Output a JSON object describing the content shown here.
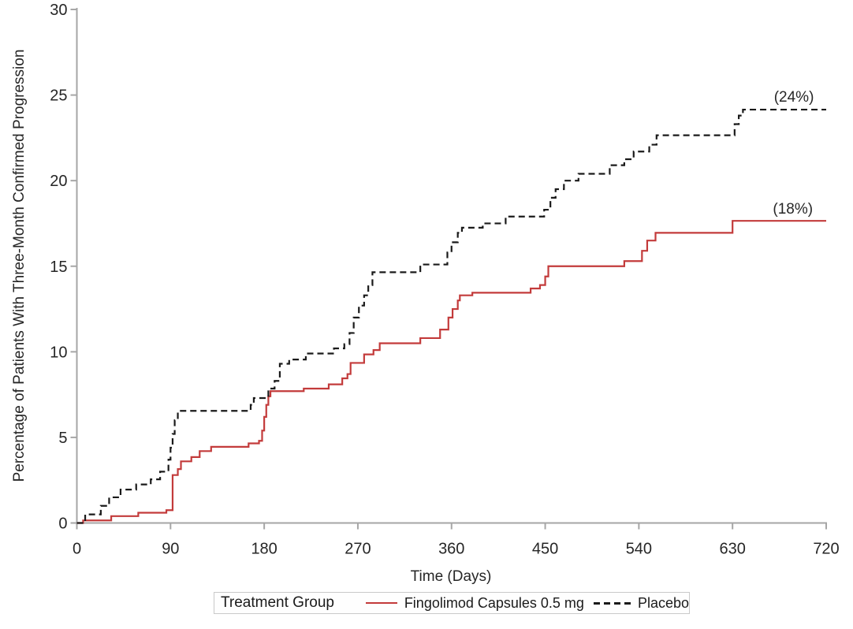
{
  "figure": {
    "background": "#ffffff",
    "axis_color": "#a6a6a6",
    "text_color": "#262626"
  },
  "chart_data": {
    "type": "line",
    "subtype": "kaplan-meier-step",
    "title": "",
    "xlabel": "Time (Days)",
    "ylabel": "Percentage of Patients With Three-Month Confirmed Progression",
    "xlim": [
      0,
      720
    ],
    "ylim": [
      0,
      30
    ],
    "xticks": [
      0,
      90,
      180,
      270,
      360,
      450,
      540,
      630,
      720
    ],
    "yticks": [
      0,
      5,
      10,
      15,
      20,
      25,
      30
    ],
    "grid": false,
    "legend": {
      "position": "bottom",
      "title": "Treatment Group",
      "entries": [
        {
          "label": "Fingolimod Capsules 0.5 mg",
          "color": "#c33b3b",
          "style": "solid"
        },
        {
          "label": "Placebo",
          "color": "#1a1a1a",
          "style": "dashed"
        }
      ]
    },
    "annotations": [
      {
        "text": "(24%)",
        "x": 689,
        "y": 24.9
      },
      {
        "text": "(18%)",
        "x": 688,
        "y": 18.35
      }
    ],
    "series": [
      {
        "name": "Fingolimod Capsules 0.5 mg",
        "color": "#c33b3b",
        "style": "solid",
        "final_label": "(18%)",
        "points": [
          [
            0,
            0
          ],
          [
            6,
            0.15
          ],
          [
            33,
            0.4
          ],
          [
            59,
            0.6
          ],
          [
            86,
            0.75
          ],
          [
            92,
            2.8
          ],
          [
            97,
            3.15
          ],
          [
            100,
            3.6
          ],
          [
            110,
            3.85
          ],
          [
            118,
            4.2
          ],
          [
            129,
            4.45
          ],
          [
            165,
            4.65
          ],
          [
            175,
            4.8
          ],
          [
            178,
            5.4
          ],
          [
            180,
            6.2
          ],
          [
            182,
            6.9
          ],
          [
            184,
            7.4
          ],
          [
            186,
            7.7
          ],
          [
            218,
            7.85
          ],
          [
            242,
            8.1
          ],
          [
            255,
            8.45
          ],
          [
            260,
            8.7
          ],
          [
            263,
            9.35
          ],
          [
            276,
            9.85
          ],
          [
            285,
            10.1
          ],
          [
            291,
            10.5
          ],
          [
            330,
            10.8
          ],
          [
            349,
            11.3
          ],
          [
            357,
            12.0
          ],
          [
            361,
            12.5
          ],
          [
            366,
            13.0
          ],
          [
            368,
            13.3
          ],
          [
            380,
            13.45
          ],
          [
            436,
            13.7
          ],
          [
            445,
            13.9
          ],
          [
            450,
            14.4
          ],
          [
            453,
            15.0
          ],
          [
            526,
            15.3
          ],
          [
            543,
            15.9
          ],
          [
            548,
            16.5
          ],
          [
            556,
            16.95
          ],
          [
            630,
            17.65
          ],
          [
            720,
            17.65
          ]
        ]
      },
      {
        "name": "Placebo",
        "color": "#1a1a1a",
        "style": "dashed",
        "final_label": "(24%)",
        "points": [
          [
            0,
            0
          ],
          [
            8,
            0.5
          ],
          [
            23,
            1.0
          ],
          [
            31,
            1.5
          ],
          [
            42,
            1.95
          ],
          [
            57,
            2.25
          ],
          [
            71,
            2.55
          ],
          [
            80,
            3.0
          ],
          [
            88,
            3.7
          ],
          [
            90,
            4.4
          ],
          [
            92,
            5.2
          ],
          [
            94,
            6.0
          ],
          [
            97,
            6.55
          ],
          [
            167,
            6.9
          ],
          [
            170,
            7.3
          ],
          [
            184,
            7.85
          ],
          [
            190,
            8.3
          ],
          [
            195,
            9.3
          ],
          [
            204,
            9.55
          ],
          [
            220,
            9.9
          ],
          [
            247,
            10.2
          ],
          [
            257,
            10.45
          ],
          [
            262,
            11.1
          ],
          [
            266,
            12.0
          ],
          [
            271,
            12.7
          ],
          [
            276,
            13.3
          ],
          [
            280,
            13.9
          ],
          [
            284,
            14.65
          ],
          [
            330,
            15.1
          ],
          [
            356,
            15.8
          ],
          [
            360,
            16.4
          ],
          [
            366,
            16.95
          ],
          [
            370,
            17.25
          ],
          [
            390,
            17.5
          ],
          [
            412,
            17.9
          ],
          [
            449,
            18.3
          ],
          [
            455,
            19.0
          ],
          [
            460,
            19.5
          ],
          [
            468,
            20.0
          ],
          [
            482,
            20.4
          ],
          [
            512,
            20.9
          ],
          [
            526,
            21.25
          ],
          [
            535,
            21.7
          ],
          [
            550,
            22.1
          ],
          [
            557,
            22.65
          ],
          [
            632,
            23.3
          ],
          [
            636,
            23.8
          ],
          [
            640,
            24.15
          ],
          [
            720,
            24.15
          ]
        ]
      }
    ]
  }
}
